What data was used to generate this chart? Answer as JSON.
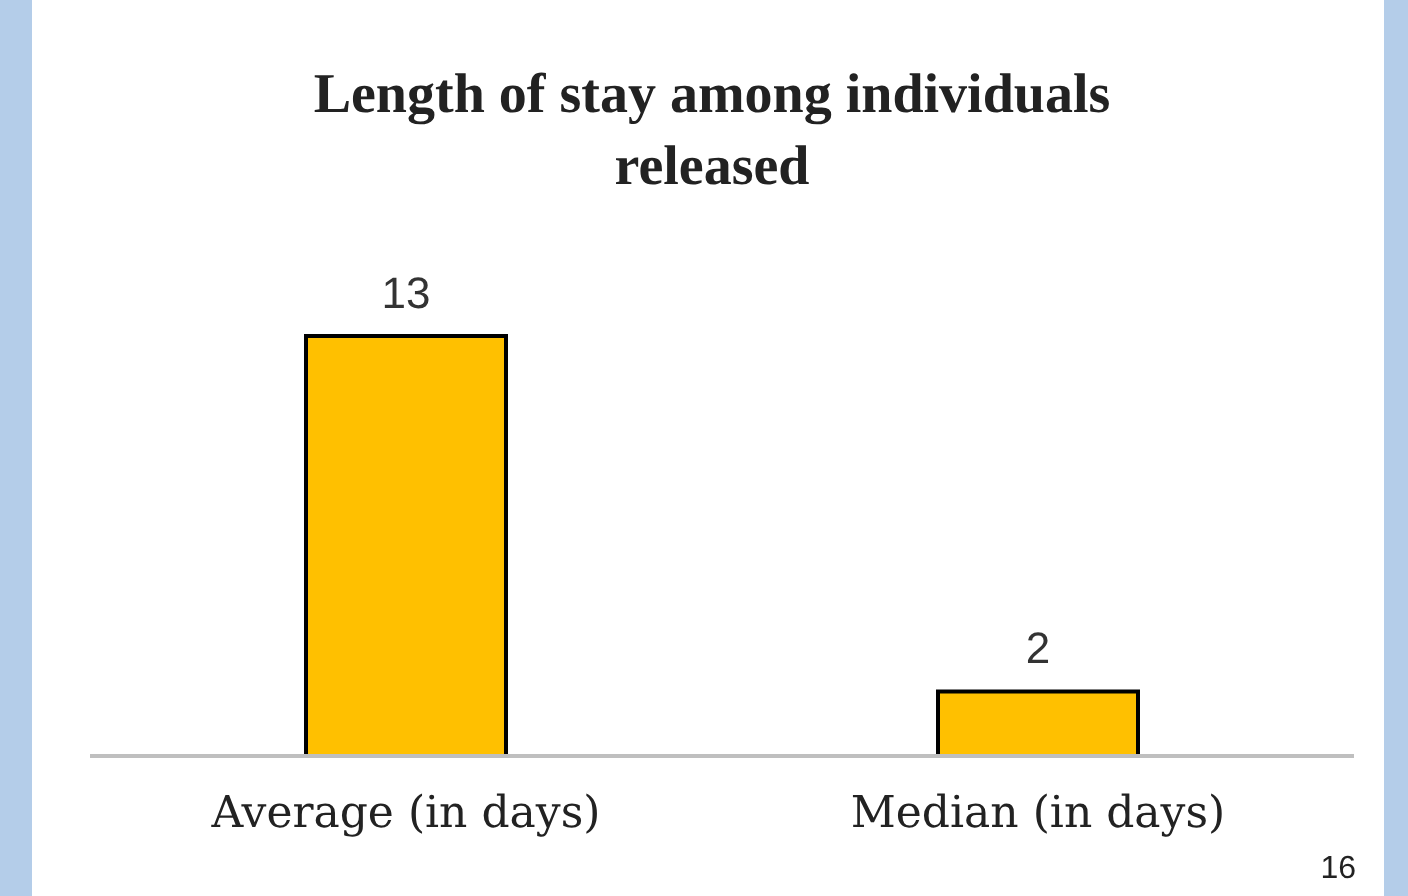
{
  "chart_data": {
    "type": "bar",
    "title": "Length of stay among individuals released",
    "categories": [
      "Average (in days)",
      "Median (in days)"
    ],
    "values": [
      13,
      2
    ],
    "color": "#ffc000",
    "data_labels": true,
    "annotations": [
      "16"
    ]
  }
}
